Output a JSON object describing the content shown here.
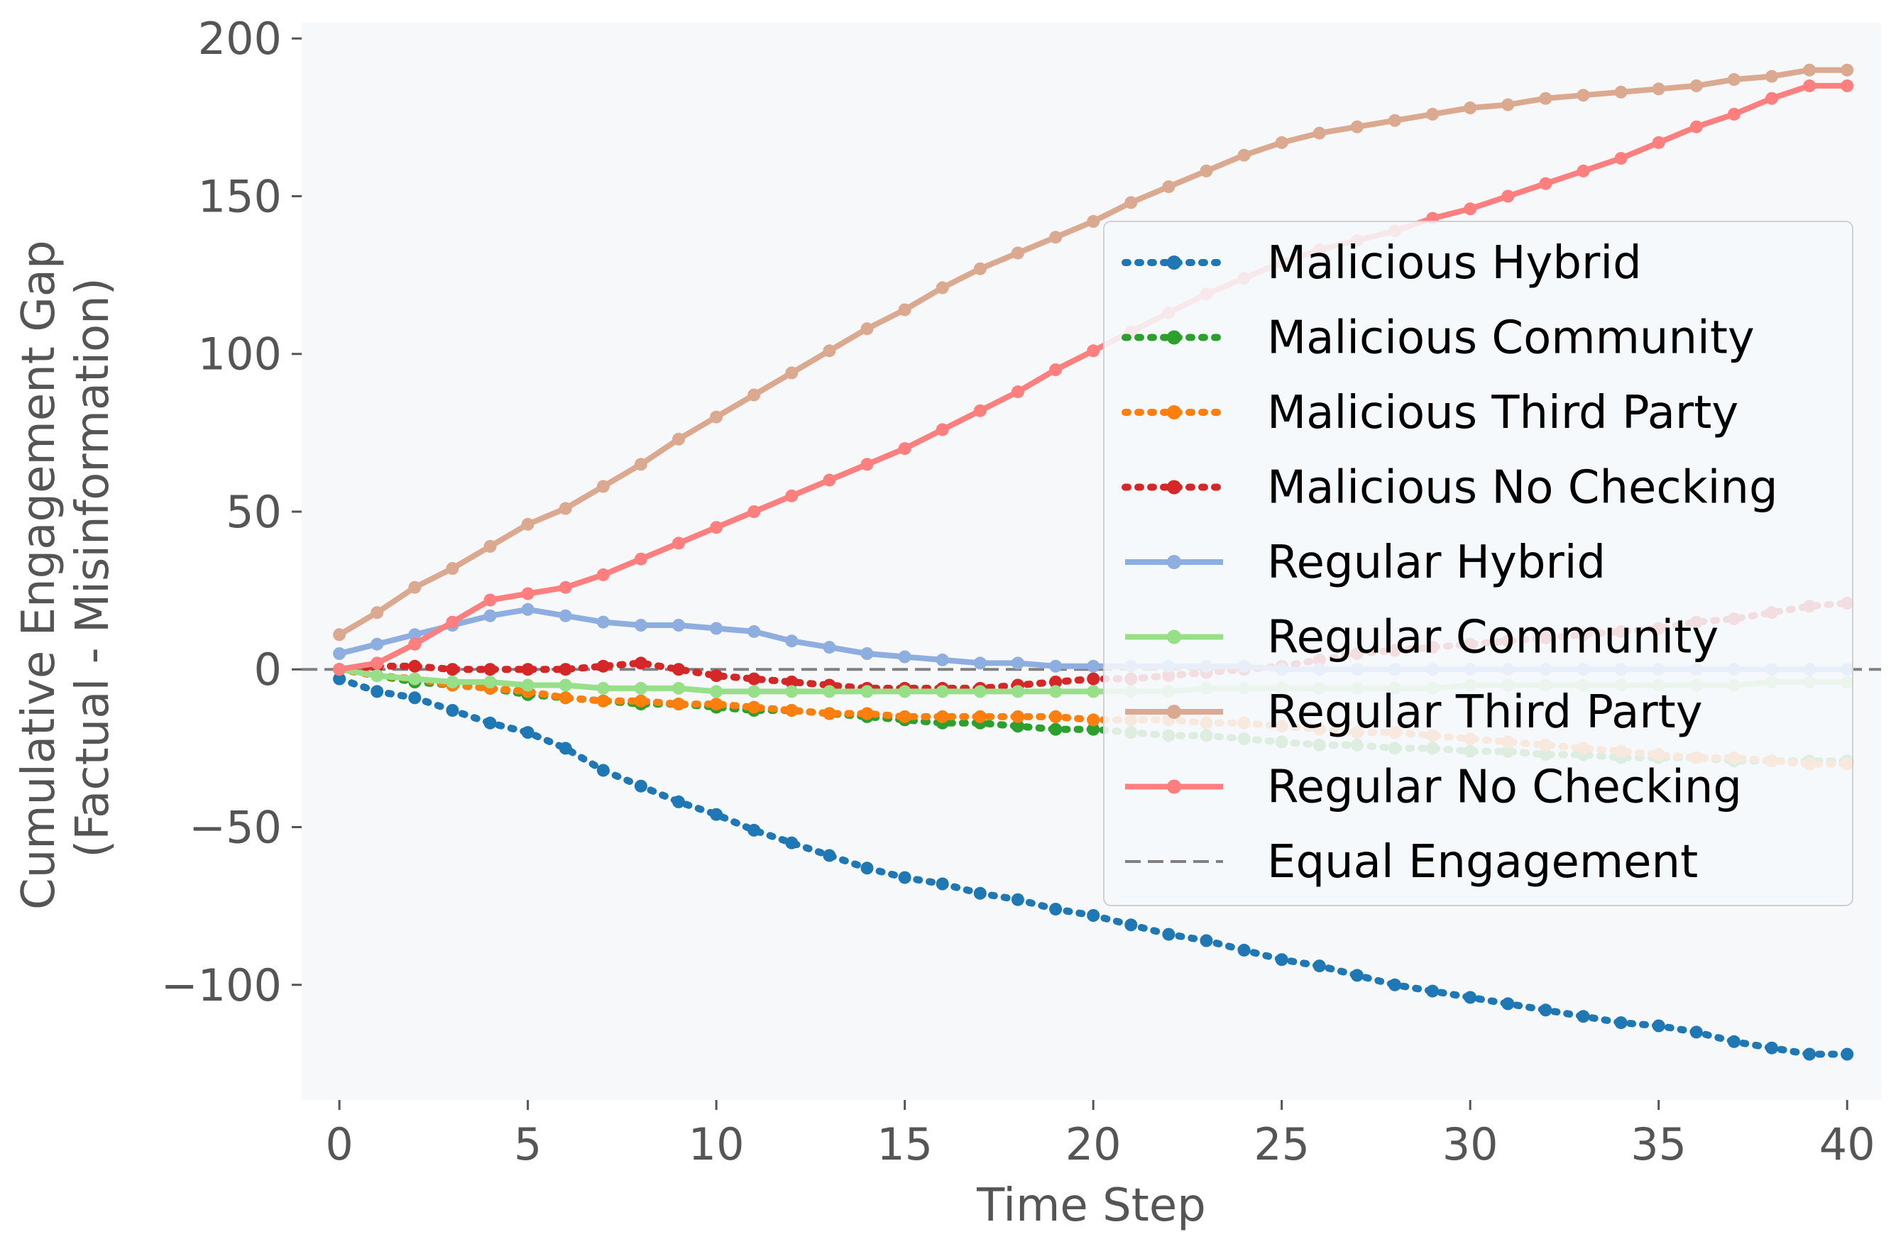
{
  "chart_data": {
    "type": "line",
    "xlabel": "Time Step",
    "ylabel_lines": [
      "Cumulative Engagement Gap",
      "(Factual - Misinformation)"
    ],
    "xlim": [
      -1,
      40.9
    ],
    "ylim": [
      -136.5,
      205
    ],
    "xticks": [
      0,
      5,
      10,
      15,
      20,
      25,
      30,
      35,
      40
    ],
    "xtick_labels": [
      "0",
      "5",
      "10",
      "15",
      "20",
      "25",
      "30",
      "35",
      "40"
    ],
    "yticks": [
      200,
      150,
      100,
      50,
      0,
      -50,
      -100
    ],
    "ytick_labels": [
      "200",
      "150",
      "100",
      "50",
      "0",
      "−50",
      "−100"
    ],
    "grid": false,
    "plot_background": "#f6f8fa",
    "legend_position": "right",
    "reference_line": {
      "name": "Equal Engagement",
      "y": 0,
      "color": "#808080",
      "style": "dashed"
    },
    "x": [
      0,
      1,
      2,
      3,
      4,
      5,
      6,
      7,
      8,
      9,
      10,
      11,
      12,
      13,
      14,
      15,
      16,
      17,
      18,
      19,
      20,
      21,
      22,
      23,
      24,
      25,
      26,
      27,
      28,
      29,
      30,
      31,
      32,
      33,
      34,
      35,
      36,
      37,
      38,
      39,
      40
    ],
    "series": [
      {
        "name": "Malicious Hybrid",
        "color": "#1f77b4",
        "style": "dotted",
        "values": [
          -3,
          -7,
          -9,
          -13,
          -17,
          -20,
          -25,
          -32,
          -37,
          -42,
          -46,
          -51,
          -55,
          -59,
          -63,
          -66,
          -68,
          -71,
          -73,
          -76,
          -78,
          -81,
          -84,
          -86,
          -89,
          -92,
          -94,
          -97,
          -100,
          -102,
          -104,
          -106,
          -108,
          -110,
          -112,
          -113,
          -115,
          -118,
          -120,
          -122,
          -122
        ]
      },
      {
        "name": "Malicious Community",
        "color": "#2ca02c",
        "style": "dotted",
        "values": [
          0,
          -2,
          -4,
          -5,
          -6,
          -8,
          -9,
          -10,
          -11,
          -11,
          -12,
          -13,
          -13,
          -14,
          -15,
          -16,
          -17,
          -17,
          -18,
          -19,
          -19,
          -20,
          -21,
          -21,
          -22,
          -23,
          -24,
          -24,
          -25,
          -25,
          -26,
          -26,
          -27,
          -27,
          -28,
          -28,
          -28,
          -29,
          -29,
          -29,
          -29
        ]
      },
      {
        "name": "Malicious Third Party",
        "color": "#ff7f0e",
        "style": "dotted",
        "values": [
          0,
          -2,
          -3,
          -5,
          -6,
          -7,
          -9,
          -10,
          -10,
          -11,
          -11,
          -12,
          -13,
          -14,
          -14,
          -15,
          -15,
          -15,
          -15,
          -15,
          -16,
          -16,
          -16,
          -17,
          -17,
          -18,
          -19,
          -20,
          -20,
          -21,
          -22,
          -23,
          -24,
          -25,
          -26,
          -27,
          -28,
          -28,
          -29,
          -30,
          -30
        ]
      },
      {
        "name": "Malicious No Checking",
        "color": "#d62728",
        "style": "dotted",
        "values": [
          0,
          1,
          1,
          0,
          0,
          0,
          0,
          1,
          2,
          0,
          -2,
          -3,
          -4,
          -5,
          -6,
          -6,
          -6,
          -6,
          -5,
          -4,
          -3,
          -3,
          -2,
          -1,
          0,
          1,
          3,
          5,
          6,
          7,
          8,
          9,
          10,
          11,
          12,
          13,
          15,
          16,
          18,
          20,
          21
        ]
      },
      {
        "name": "Regular Hybrid",
        "color": "#8faee0",
        "style": "solid",
        "values": [
          5,
          8,
          11,
          14,
          17,
          19,
          17,
          15,
          14,
          14,
          13,
          12,
          9,
          7,
          5,
          4,
          3,
          2,
          2,
          1,
          1,
          1,
          1,
          1,
          1,
          0,
          0,
          0,
          0,
          0,
          0,
          0,
          0,
          0,
          0,
          0,
          0,
          0,
          0,
          0,
          0
        ]
      },
      {
        "name": "Regular Community",
        "color": "#98df8a",
        "style": "solid",
        "values": [
          0,
          -2,
          -3,
          -4,
          -4,
          -5,
          -5,
          -6,
          -6,
          -6,
          -7,
          -7,
          -7,
          -7,
          -7,
          -7,
          -7,
          -7,
          -7,
          -7,
          -7,
          -7,
          -7,
          -6,
          -6,
          -6,
          -6,
          -6,
          -6,
          -6,
          -5,
          -5,
          -5,
          -5,
          -5,
          -5,
          -5,
          -5,
          -4,
          -4,
          -4
        ]
      },
      {
        "name": "Regular Third Party",
        "color": "#dba98f",
        "style": "solid",
        "values": [
          11,
          18,
          26,
          32,
          39,
          46,
          51,
          58,
          65,
          73,
          80,
          87,
          94,
          101,
          108,
          114,
          121,
          127,
          132,
          137,
          142,
          148,
          153,
          158,
          163,
          167,
          170,
          172,
          174,
          176,
          178,
          179,
          181,
          182,
          183,
          184,
          185,
          187,
          188,
          190,
          190
        ]
      },
      {
        "name": "Regular No Checking",
        "color": "#ff7f7f",
        "style": "solid",
        "values": [
          0,
          2,
          8,
          15,
          22,
          24,
          26,
          30,
          35,
          40,
          45,
          50,
          55,
          60,
          65,
          70,
          76,
          82,
          88,
          95,
          101,
          107,
          113,
          119,
          124,
          129,
          133,
          136,
          139,
          143,
          146,
          150,
          154,
          158,
          162,
          167,
          172,
          176,
          181,
          185,
          185
        ]
      }
    ],
    "legend": [
      "Malicious Hybrid",
      "Malicious Community",
      "Malicious Third Party",
      "Malicious No Checking",
      "Regular Hybrid",
      "Regular Community",
      "Regular Third Party",
      "Regular No Checking",
      "Equal Engagement"
    ]
  }
}
